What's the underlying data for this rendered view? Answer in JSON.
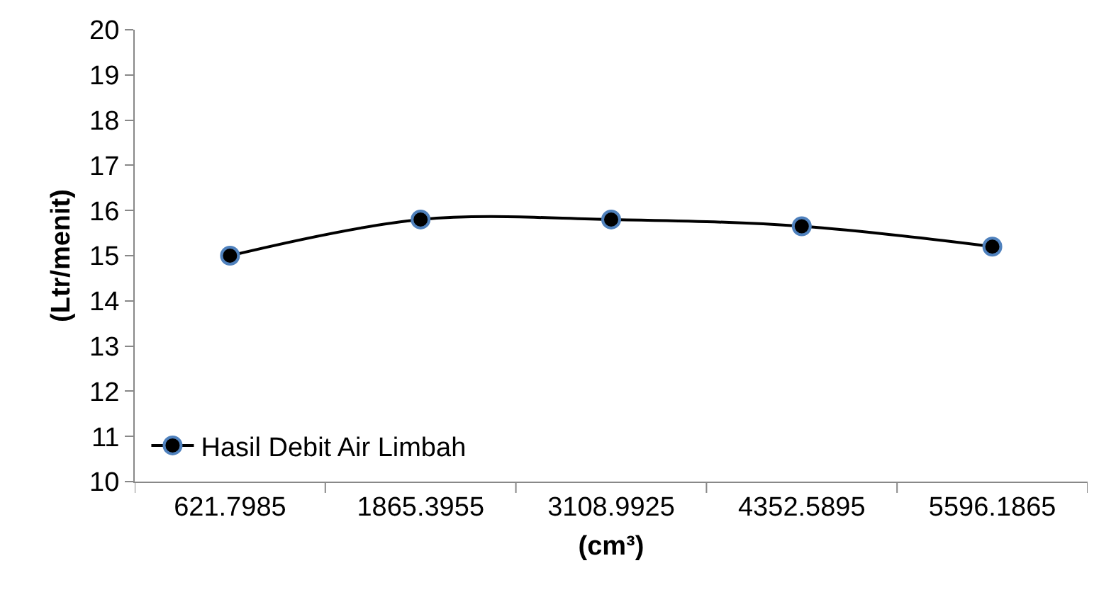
{
  "chart_data": {
    "type": "line",
    "xlabel": "(cm³)",
    "ylabel": "(Ltr/menit)",
    "categories": [
      "621.7985",
      "1865.3955",
      "3108.9925",
      "4352.5895",
      "5596.1865"
    ],
    "series": [
      {
        "name": "Hasil Debit Air Limbah",
        "color": "#000000",
        "values": [
          15.0,
          15.8,
          15.8,
          15.65,
          15.2
        ]
      }
    ],
    "ylim": [
      10,
      20
    ],
    "yticks": [
      10,
      11,
      12,
      13,
      14,
      15,
      16,
      17,
      18,
      19,
      20
    ],
    "legend": "bottom left",
    "marker": "circle",
    "line_style": "solid"
  }
}
